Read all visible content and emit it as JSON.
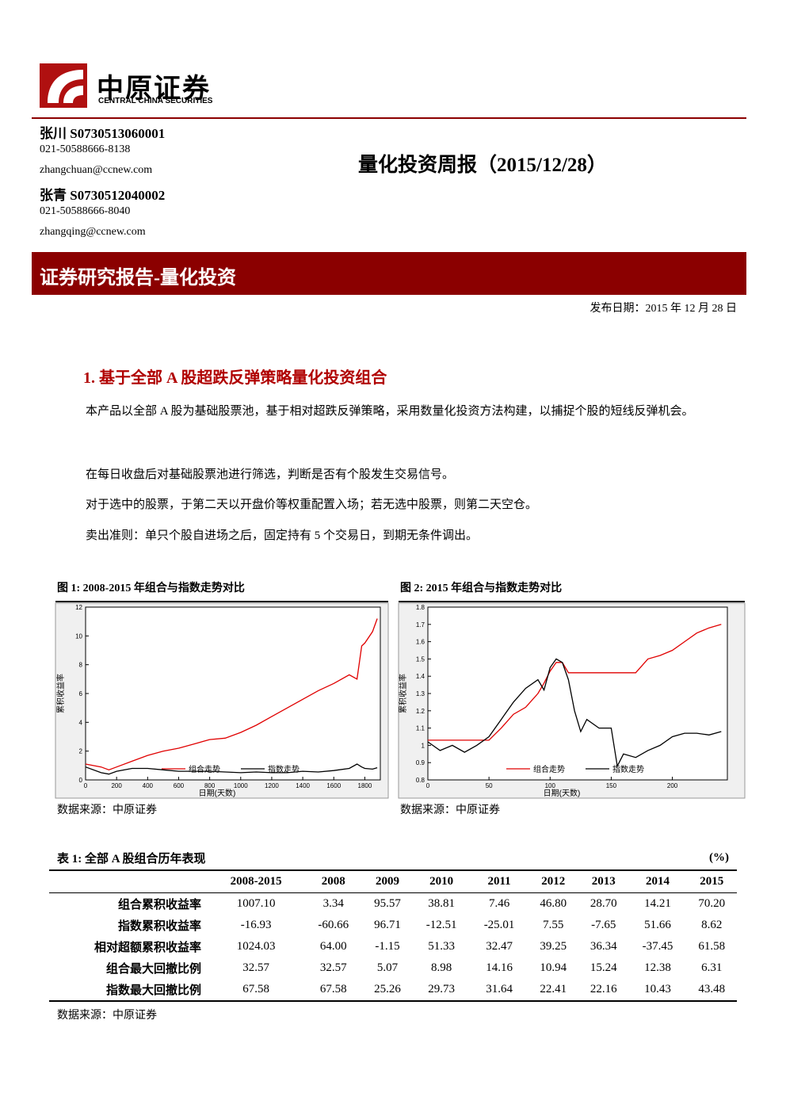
{
  "header": {
    "logo_cn": "中原证券",
    "logo_en": "CENTRAL CHINA SECURITIES"
  },
  "authors": [
    {
      "name": "张川 S0730513060001",
      "phone": "021-50588666-8138",
      "email": "zhangchuan@ccnew.com"
    },
    {
      "name": "张青 S0730512040002",
      "phone": "021-50588666-8040",
      "email": "zhangqing@ccnew.com"
    }
  ],
  "title": "量化投资周报（2015/12/28）",
  "banner": "证券研究报告-量化投资",
  "date": "发布日期：2015 年 12 月 28 日",
  "section": "1. 基于全部 A 股超跌反弹策略量化投资组合",
  "paragraphs": [
    "本产品以全部 A 股为基础股票池，基于相对超跌反弹策略，采用数量化投资方法构建，以捕捉个股的短线反弹机会。",
    "在每日收盘后对基础股票池进行筛选，判断是否有个股发生交易信号。",
    "对于选中的股票，于第二天以开盘价等权重配置入场；若无选中股票，则第二天空仓。",
    "卖出准则：单只个股自进场之后，固定持有 5 个交易日，到期无条件调出。"
  ],
  "chart_data": [
    {
      "type": "line",
      "title": "图 1: 2008-2015 年组合与指数走势对比",
      "x_label": "日期(天数)",
      "y_label": "累积收益率",
      "source": "数据来源：中原证券",
      "x": [
        0,
        100,
        150,
        200,
        300,
        400,
        500,
        600,
        700,
        800,
        900,
        1000,
        1100,
        1200,
        1300,
        1400,
        1500,
        1600,
        1700,
        1750,
        1780,
        1800,
        1850,
        1880
      ],
      "series": [
        {
          "name": "组合走势",
          "color": "#e00000",
          "values": [
            1.1,
            0.9,
            0.7,
            0.9,
            1.3,
            1.7,
            2.0,
            2.2,
            2.5,
            2.8,
            2.9,
            3.3,
            3.8,
            4.4,
            5.0,
            5.6,
            6.2,
            6.7,
            7.3,
            7.0,
            9.3,
            9.5,
            10.3,
            11.2
          ]
        },
        {
          "name": "指数走势",
          "color": "#000000",
          "values": [
            0.9,
            0.5,
            0.4,
            0.6,
            0.8,
            0.8,
            0.7,
            0.6,
            0.6,
            0.6,
            0.55,
            0.5,
            0.55,
            0.5,
            0.5,
            0.6,
            0.55,
            0.65,
            0.8,
            1.1,
            0.9,
            0.8,
            0.75,
            0.85
          ]
        }
      ],
      "xlim": [
        0,
        1900
      ],
      "xticks": [
        0,
        200,
        400,
        600,
        800,
        1000,
        1200,
        1400,
        1600,
        1800
      ],
      "ylim": [
        0,
        12
      ],
      "yticks": [
        0,
        2,
        4,
        6,
        8,
        10,
        12
      ]
    },
    {
      "type": "line",
      "title": "图 2: 2015 年组合与指数走势对比",
      "x_label": "日期(天数)",
      "y_label": "累积收益率",
      "source": "数据来源：中原证券",
      "x": [
        0,
        10,
        20,
        30,
        40,
        50,
        60,
        70,
        80,
        90,
        95,
        100,
        105,
        110,
        115,
        120,
        125,
        130,
        140,
        150,
        155,
        160,
        170,
        180,
        190,
        200,
        210,
        220,
        230,
        240
      ],
      "series": [
        {
          "name": "组合走势",
          "color": "#e00000",
          "values": [
            1.03,
            1.03,
            1.03,
            1.03,
            1.03,
            1.03,
            1.1,
            1.18,
            1.22,
            1.3,
            1.36,
            1.43,
            1.48,
            1.48,
            1.42,
            1.42,
            1.42,
            1.42,
            1.42,
            1.42,
            1.42,
            1.42,
            1.42,
            1.5,
            1.52,
            1.55,
            1.6,
            1.65,
            1.68,
            1.7
          ]
        },
        {
          "name": "指数走势",
          "color": "#000000",
          "values": [
            1.02,
            0.97,
            1.0,
            0.96,
            1.0,
            1.05,
            1.15,
            1.25,
            1.33,
            1.38,
            1.32,
            1.45,
            1.5,
            1.48,
            1.38,
            1.2,
            1.08,
            1.15,
            1.1,
            1.1,
            0.88,
            0.95,
            0.93,
            0.97,
            1.0,
            1.05,
            1.07,
            1.07,
            1.06,
            1.08
          ]
        }
      ],
      "xlim": [
        0,
        245
      ],
      "xticks": [
        0,
        50,
        100,
        150,
        200
      ],
      "ylim": [
        0.8,
        1.8
      ],
      "yticks": [
        0.8,
        0.9,
        1,
        1.1,
        1.2,
        1.3,
        1.4,
        1.5,
        1.6,
        1.7,
        1.8
      ]
    }
  ],
  "table": {
    "caption": "表 1: 全部 A 股组合历年表现",
    "unit": "(%)",
    "columns": [
      "2008-2015",
      "2008",
      "2009",
      "2010",
      "2011",
      "2012",
      "2013",
      "2014",
      "2015"
    ],
    "rows": [
      {
        "label": "组合累积收益率",
        "values": [
          "1007.10",
          "3.34",
          "95.57",
          "38.81",
          "7.46",
          "46.80",
          "28.70",
          "14.21",
          "70.20"
        ]
      },
      {
        "label": "指数累积收益率",
        "values": [
          "-16.93",
          "-60.66",
          "96.71",
          "-12.51",
          "-25.01",
          "7.55",
          "-7.65",
          "51.66",
          "8.62"
        ]
      },
      {
        "label": "相对超额累积收益率",
        "values": [
          "1024.03",
          "64.00",
          "-1.15",
          "51.33",
          "32.47",
          "39.25",
          "36.34",
          "-37.45",
          "61.58"
        ]
      },
      {
        "label": "组合最大回撤比例",
        "values": [
          "32.57",
          "32.57",
          "5.07",
          "8.98",
          "14.16",
          "10.94",
          "15.24",
          "12.38",
          "6.31"
        ]
      },
      {
        "label": "指数最大回撤比例",
        "values": [
          "67.58",
          "67.58",
          "25.26",
          "29.73",
          "31.64",
          "22.41",
          "22.16",
          "10.43",
          "43.48"
        ]
      }
    ],
    "source": "数据来源：中原证券"
  }
}
